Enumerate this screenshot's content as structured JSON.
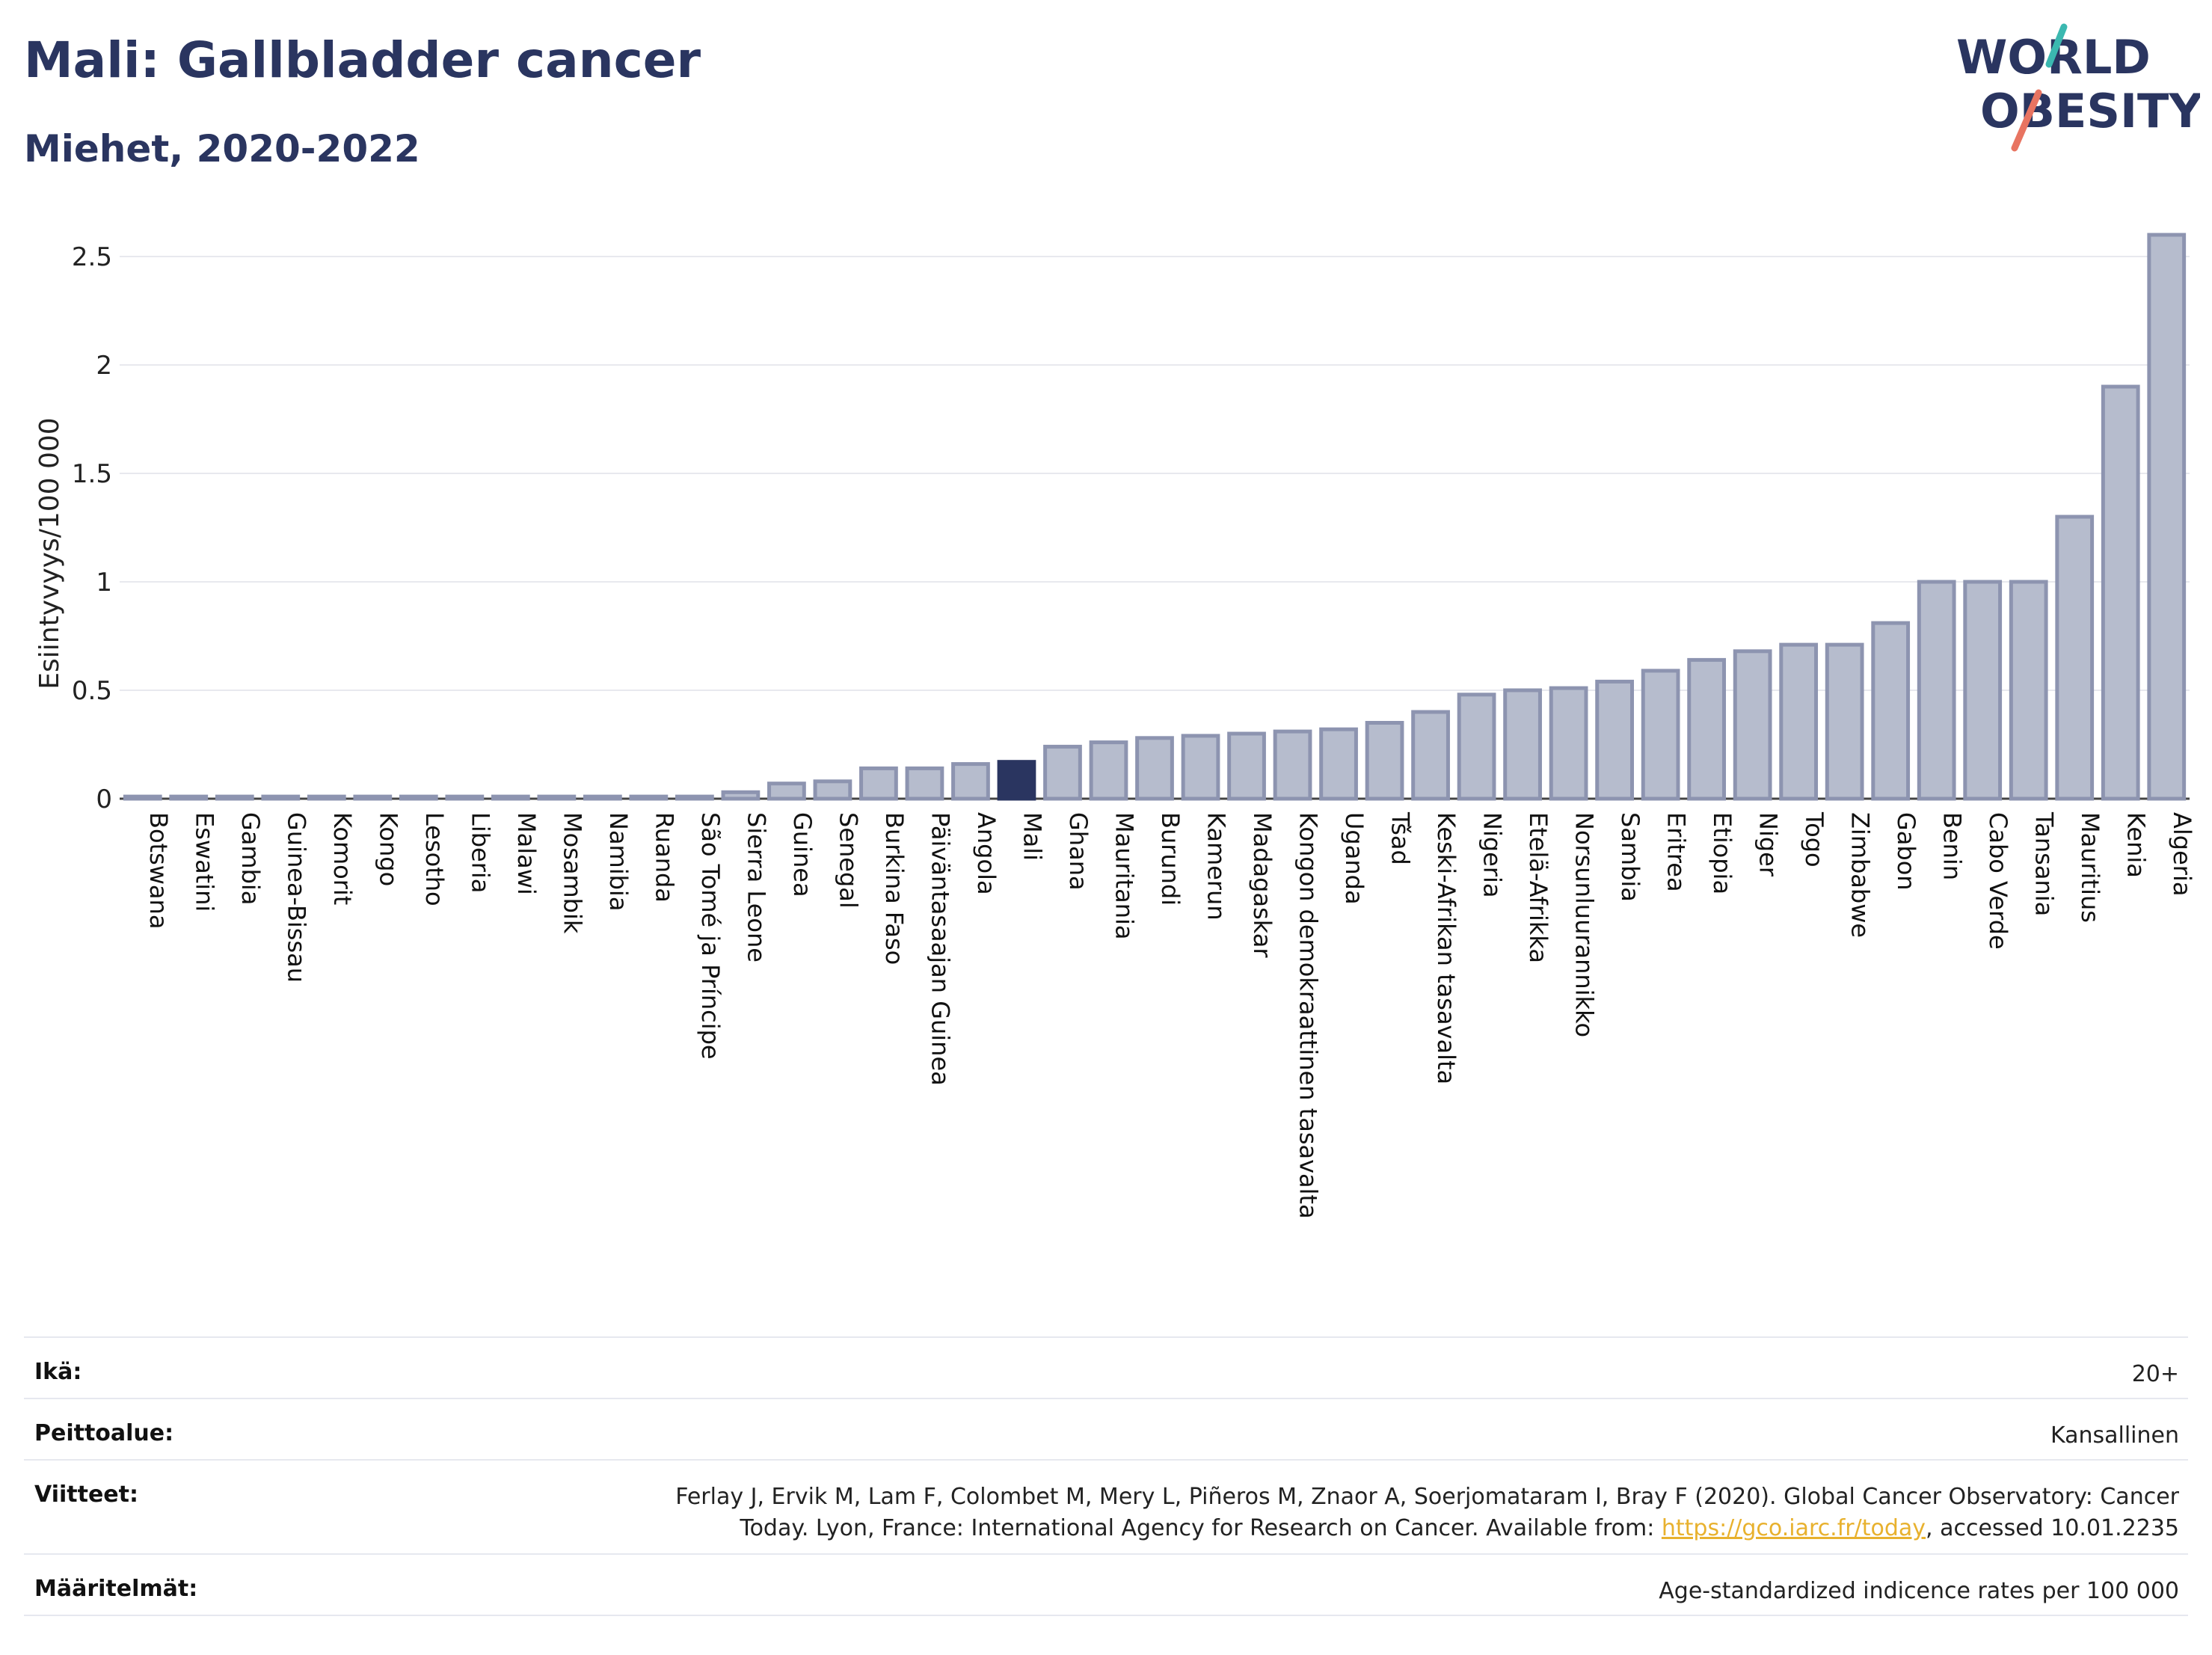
{
  "header": {
    "title": "Mali: Gallbladder cancer",
    "subtitle": "Miehet, 2020-2022"
  },
  "logo": {
    "line1": "WORLD",
    "line2": "OBESITY",
    "colors": {
      "text": "#2a3560",
      "slash_top": "#3bb8b0",
      "slash_bottom": "#e87461"
    }
  },
  "chart_data": {
    "type": "bar",
    "ylabel": "Esiintyvyys/100 000",
    "xlabel": "",
    "ylim": [
      0,
      2.7
    ],
    "yticks": [
      0,
      0.5,
      1,
      1.5,
      2,
      2.5
    ],
    "ytick_labels": [
      "0",
      "0.5",
      "1",
      "1.5",
      "2",
      "2.5"
    ],
    "grid": true,
    "highlight": "Mali",
    "colors": {
      "bar": "#b6bccd",
      "bar_edge": "#8d94b0",
      "highlight": "#2a3560",
      "grid": "#e8e9ee"
    },
    "categories": [
      "Botswana",
      "Eswatini",
      "Gambia",
      "Guinea-Bissau",
      "Komorit",
      "Kongo",
      "Lesotho",
      "Liberia",
      "Malawi",
      "Mosambik",
      "Namibia",
      "Ruanda",
      "São Tomé ja Príncipe",
      "Sierra Leone",
      "Guinea",
      "Senegal",
      "Burkina Faso",
      "Päiväntasaajan Guinea",
      "Angola",
      "Mali",
      "Ghana",
      "Mauritania",
      "Burundi",
      "Kamerun",
      "Madagaskar",
      "Kongon demokraattinen tasavalta",
      "Uganda",
      "Tšad",
      "Keski-Afrikan tasavalta",
      "Nigeria",
      "Etelä-Afrikka",
      "Norsunluurannikko",
      "Sambia",
      "Eritrea",
      "Etiopia",
      "Niger",
      "Togo",
      "Zimbabwe",
      "Gabon",
      "Benin",
      "Cabo Verde",
      "Tansania",
      "Mauritius",
      "Kenia",
      "Algeria"
    ],
    "values": [
      0.01,
      0.01,
      0.01,
      0.01,
      0.01,
      0.01,
      0.01,
      0.01,
      0.01,
      0.01,
      0.01,
      0.01,
      0.01,
      0.03,
      0.07,
      0.08,
      0.14,
      0.14,
      0.16,
      0.17,
      0.24,
      0.26,
      0.28,
      0.29,
      0.3,
      0.31,
      0.32,
      0.35,
      0.4,
      0.48,
      0.5,
      0.51,
      0.54,
      0.59,
      0.64,
      0.68,
      0.71,
      0.71,
      0.81,
      1.0,
      1.0,
      1.0,
      1.3,
      1.9,
      2.6
    ]
  },
  "meta": [
    {
      "label": "Ikä:",
      "value": "20+"
    },
    {
      "label": "Peittoalue:",
      "value": "Kansallinen"
    },
    {
      "label": "Viitteet:",
      "value_part1": "Ferlay J, Ervik M, Lam F, Colombet M, Mery L, Piñeros M, Znaor A, Soerjomataram I, Bray F (2020). Global Cancer Observatory: Cancer Today. Lyon, France: International Agency for Research on Cancer. Available from: ",
      "link": "https://gco.iarc.fr/today",
      "value_part2": ", accessed 10.01.2235"
    },
    {
      "label": "Määritelmät:",
      "value": "Age-standardized indicence rates per 100 000"
    }
  ]
}
